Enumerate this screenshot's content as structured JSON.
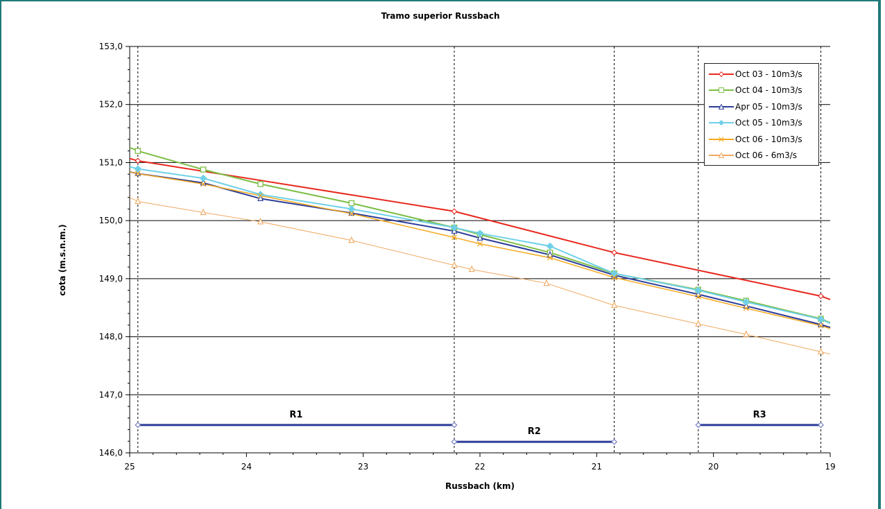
{
  "chart_data": {
    "type": "line",
    "title": "Tramo superior Russbach",
    "xlabel": "Russbach (km)",
    "ylabel": "cota (m.s.n.m.)",
    "xlim": [
      25,
      19
    ],
    "ylim": [
      146,
      153
    ],
    "x_reversed": true,
    "grid": "horizontal",
    "legend_position": "top-right",
    "x_ticks": [
      "25",
      "24",
      "23",
      "22",
      "21",
      "20",
      "19"
    ],
    "y_ticks": [
      "146,0",
      "147,0",
      "148,0",
      "149,0",
      "150,0",
      "151,0",
      "152,0",
      "153,0"
    ],
    "vertical_dashed_lines": [
      24.93,
      22.22,
      20.85,
      20.13,
      19.08
    ],
    "series": [
      {
        "name": "Oct 03 - 10m3/s",
        "color": "#e8281e",
        "marker": "diamond",
        "x": [
          25.0,
          24.93,
          22.22,
          20.85,
          19.08,
          19.0
        ],
        "y": [
          151.07,
          151.03,
          150.16,
          149.45,
          148.7,
          148.64
        ]
      },
      {
        "name": "Oct 04 - 10m3/s",
        "color": "#7cbe46",
        "marker": "square",
        "x": [
          25.0,
          24.93,
          24.37,
          23.88,
          23.1,
          22.22,
          22.0,
          21.4,
          20.85,
          20.13,
          19.72,
          19.08,
          19.0
        ],
        "y": [
          151.26,
          151.2,
          150.88,
          150.63,
          150.3,
          149.88,
          149.76,
          149.45,
          149.09,
          148.81,
          148.62,
          148.31,
          148.24
        ]
      },
      {
        "name": "Apr 05 - 10m3/s",
        "color": "#2b3c98",
        "marker": "triangle",
        "x": [
          25.0,
          24.93,
          24.37,
          23.88,
          23.1,
          22.22,
          22.0,
          21.4,
          20.85,
          20.13,
          19.72,
          19.08,
          19.0
        ],
        "y": [
          150.84,
          150.81,
          150.65,
          150.38,
          150.13,
          149.82,
          149.7,
          149.41,
          149.06,
          148.73,
          148.53,
          148.21,
          148.16
        ]
      },
      {
        "name": "Oct 05 - 10m3/s",
        "color": "#6fd0e8",
        "marker": "diamond-filled",
        "x": [
          25.0,
          24.93,
          24.37,
          23.88,
          23.1,
          22.22,
          22.0,
          21.4,
          20.85,
          20.13,
          19.72,
          19.08,
          19.0
        ],
        "y": [
          150.93,
          150.89,
          150.73,
          150.45,
          150.2,
          149.88,
          149.78,
          149.56,
          149.09,
          148.8,
          148.6,
          148.3,
          148.23
        ]
      },
      {
        "name": "Oct 06 - 10m3/s",
        "color": "#f5a81e",
        "marker": "x",
        "x": [
          25.0,
          24.93,
          24.37,
          23.88,
          23.1,
          22.22,
          22.0,
          21.4,
          20.85,
          20.13,
          19.72,
          19.08,
          19.0
        ],
        "y": [
          150.84,
          150.81,
          150.63,
          150.43,
          150.12,
          149.71,
          149.6,
          149.36,
          149.02,
          148.69,
          148.49,
          148.19,
          148.14
        ]
      },
      {
        "name": "Oct 06 - 6m3/s",
        "color": "#f0a860",
        "marker": "triangle",
        "x": [
          25.0,
          24.93,
          24.37,
          23.88,
          23.1,
          22.22,
          22.07,
          21.43,
          20.85,
          20.13,
          19.72,
          19.08,
          19.0
        ],
        "y": [
          150.4,
          150.33,
          150.14,
          149.98,
          149.66,
          149.23,
          149.16,
          148.92,
          148.54,
          148.22,
          148.04,
          147.74,
          147.7
        ]
      }
    ],
    "reaches": [
      {
        "label": "R1",
        "x_start": 24.93,
        "x_end": 22.22,
        "y": 146.48,
        "color": "#2b3c98"
      },
      {
        "label": "R2",
        "x_start": 22.22,
        "x_end": 20.85,
        "y": 146.19,
        "color": "#2b3c98"
      },
      {
        "label": "R3",
        "x_start": 20.13,
        "x_end": 19.08,
        "y": 146.48,
        "color": "#2b3c98"
      }
    ]
  }
}
